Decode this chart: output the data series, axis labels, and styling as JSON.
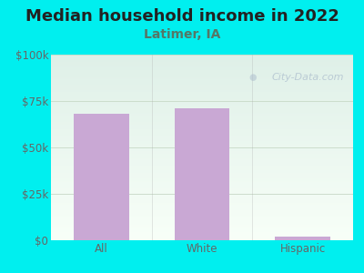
{
  "title": "Median household income in 2022",
  "subtitle": "Latimer, IA",
  "categories": [
    "All",
    "White",
    "Hispanic"
  ],
  "values": [
    68000,
    71000,
    2000
  ],
  "bar_color": "#c9a8d4",
  "background_color": "#00EFEF",
  "plot_bg_top": "#dff0e8",
  "plot_bg_bottom": "#f8fff8",
  "ylim": [
    0,
    100000
  ],
  "yticks": [
    0,
    25000,
    50000,
    75000,
    100000
  ],
  "ytick_labels": [
    "$0",
    "$25k",
    "$50k",
    "$75k",
    "$100k"
  ],
  "title_fontsize": 13,
  "subtitle_fontsize": 10,
  "tick_fontsize": 8.5,
  "watermark": "City-Data.com",
  "title_color": "#222222",
  "subtitle_color": "#557766",
  "tick_color": "#666666",
  "grid_color": "#ccddcc",
  "separator_color": "#aaaaaa"
}
